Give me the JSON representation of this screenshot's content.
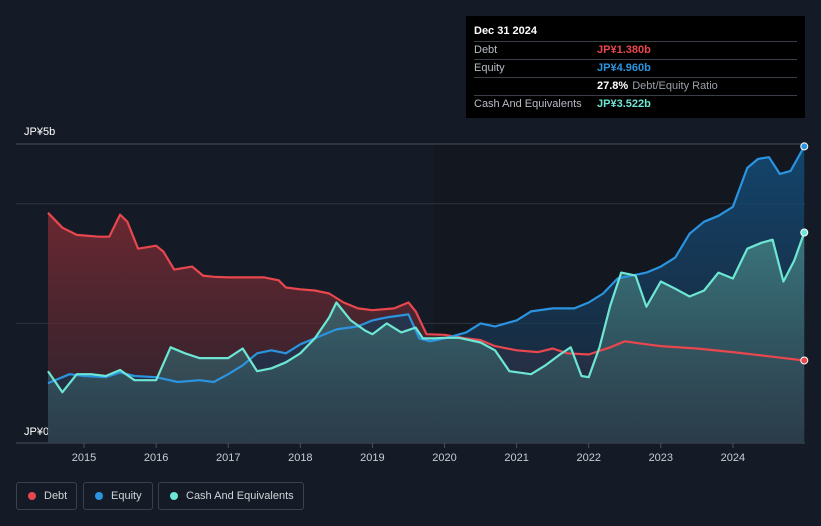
{
  "tooltip": {
    "date": "Dec 31 2024",
    "debt_label": "Debt",
    "debt_value": "JP¥1.380b",
    "equity_label": "Equity",
    "equity_value": "JP¥4.960b",
    "ratio_value": "27.8%",
    "ratio_label": "Debt/Equity Ratio",
    "cash_label": "Cash And Equivalents",
    "cash_value": "JP¥3.522b"
  },
  "legend": {
    "debt": "Debt",
    "equity": "Equity",
    "cash": "Cash And Equivalents"
  },
  "colors": {
    "debt": "#e8474e",
    "equity": "#2b94e0",
    "cash": "#6ee6d4",
    "background": "#151b26"
  },
  "chart_data": {
    "type": "area",
    "ylabel_top": "JP¥5b",
    "ylabel_bottom": "JP¥0",
    "ylim": [
      0,
      5
    ],
    "xlim": [
      2014.5,
      2025.0
    ],
    "x_ticks": [
      "2015",
      "2016",
      "2017",
      "2018",
      "2019",
      "2020",
      "2021",
      "2022",
      "2023",
      "2024"
    ],
    "grid": true,
    "legend_position": "bottom-left",
    "series": [
      {
        "name": "Debt",
        "key": "debt",
        "points": [
          [
            2014.5,
            3.85
          ],
          [
            2014.7,
            3.6
          ],
          [
            2014.9,
            3.48
          ],
          [
            2015.2,
            3.45
          ],
          [
            2015.35,
            3.45
          ],
          [
            2015.5,
            3.82
          ],
          [
            2015.6,
            3.7
          ],
          [
            2015.75,
            3.25
          ],
          [
            2016.0,
            3.3
          ],
          [
            2016.1,
            3.2
          ],
          [
            2016.25,
            2.9
          ],
          [
            2016.5,
            2.95
          ],
          [
            2016.65,
            2.8
          ],
          [
            2016.8,
            2.78
          ],
          [
            2017.0,
            2.77
          ],
          [
            2017.5,
            2.77
          ],
          [
            2017.7,
            2.72
          ],
          [
            2017.8,
            2.6
          ],
          [
            2018.0,
            2.57
          ],
          [
            2018.2,
            2.55
          ],
          [
            2018.4,
            2.5
          ],
          [
            2018.6,
            2.35
          ],
          [
            2018.8,
            2.25
          ],
          [
            2019.0,
            2.22
          ],
          [
            2019.3,
            2.25
          ],
          [
            2019.5,
            2.35
          ],
          [
            2019.6,
            2.2
          ],
          [
            2019.75,
            1.82
          ],
          [
            2020.0,
            1.81
          ],
          [
            2020.3,
            1.75
          ],
          [
            2020.5,
            1.72
          ],
          [
            2020.7,
            1.62
          ],
          [
            2021.0,
            1.55
          ],
          [
            2021.3,
            1.52
          ],
          [
            2021.5,
            1.58
          ],
          [
            2021.7,
            1.5
          ],
          [
            2022.0,
            1.48
          ],
          [
            2022.3,
            1.6
          ],
          [
            2022.5,
            1.7
          ],
          [
            2022.8,
            1.65
          ],
          [
            2023.0,
            1.62
          ],
          [
            2023.5,
            1.58
          ],
          [
            2024.0,
            1.52
          ],
          [
            2024.5,
            1.45
          ],
          [
            2024.99,
            1.38
          ]
        ]
      },
      {
        "name": "Equity",
        "key": "equity",
        "points": [
          [
            2014.5,
            1.0
          ],
          [
            2014.8,
            1.15
          ],
          [
            2015.0,
            1.12
          ],
          [
            2015.3,
            1.1
          ],
          [
            2015.5,
            1.18
          ],
          [
            2015.7,
            1.12
          ],
          [
            2016.0,
            1.1
          ],
          [
            2016.3,
            1.02
          ],
          [
            2016.6,
            1.05
          ],
          [
            2016.8,
            1.02
          ],
          [
            2017.0,
            1.15
          ],
          [
            2017.2,
            1.3
          ],
          [
            2017.4,
            1.5
          ],
          [
            2017.6,
            1.55
          ],
          [
            2017.8,
            1.5
          ],
          [
            2018.0,
            1.65
          ],
          [
            2018.3,
            1.8
          ],
          [
            2018.5,
            1.9
          ],
          [
            2018.8,
            1.95
          ],
          [
            2019.0,
            2.05
          ],
          [
            2019.2,
            2.1
          ],
          [
            2019.5,
            2.15
          ],
          [
            2019.65,
            1.75
          ],
          [
            2019.8,
            1.7
          ],
          [
            2020.0,
            1.75
          ],
          [
            2020.3,
            1.85
          ],
          [
            2020.5,
            2.0
          ],
          [
            2020.7,
            1.95
          ],
          [
            2021.0,
            2.05
          ],
          [
            2021.2,
            2.2
          ],
          [
            2021.5,
            2.25
          ],
          [
            2021.8,
            2.25
          ],
          [
            2022.0,
            2.35
          ],
          [
            2022.2,
            2.5
          ],
          [
            2022.4,
            2.75
          ],
          [
            2022.6,
            2.8
          ],
          [
            2022.8,
            2.85
          ],
          [
            2023.0,
            2.95
          ],
          [
            2023.2,
            3.1
          ],
          [
            2023.4,
            3.5
          ],
          [
            2023.6,
            3.7
          ],
          [
            2023.8,
            3.8
          ],
          [
            2024.0,
            3.95
          ],
          [
            2024.2,
            4.6
          ],
          [
            2024.35,
            4.75
          ],
          [
            2024.5,
            4.78
          ],
          [
            2024.65,
            4.5
          ],
          [
            2024.8,
            4.55
          ],
          [
            2024.99,
            4.96
          ]
        ]
      },
      {
        "name": "Cash And Equivalents",
        "key": "cash",
        "points": [
          [
            2014.5,
            1.2
          ],
          [
            2014.7,
            0.85
          ],
          [
            2014.9,
            1.15
          ],
          [
            2015.1,
            1.15
          ],
          [
            2015.3,
            1.12
          ],
          [
            2015.5,
            1.22
          ],
          [
            2015.7,
            1.05
          ],
          [
            2016.0,
            1.05
          ],
          [
            2016.2,
            1.6
          ],
          [
            2016.4,
            1.5
          ],
          [
            2016.6,
            1.42
          ],
          [
            2016.8,
            1.42
          ],
          [
            2017.0,
            1.42
          ],
          [
            2017.2,
            1.58
          ],
          [
            2017.4,
            1.2
          ],
          [
            2017.6,
            1.25
          ],
          [
            2017.8,
            1.35
          ],
          [
            2018.0,
            1.5
          ],
          [
            2018.2,
            1.75
          ],
          [
            2018.4,
            2.1
          ],
          [
            2018.5,
            2.35
          ],
          [
            2018.7,
            2.05
          ],
          [
            2018.9,
            1.88
          ],
          [
            2019.0,
            1.82
          ],
          [
            2019.2,
            2.0
          ],
          [
            2019.4,
            1.85
          ],
          [
            2019.6,
            1.93
          ],
          [
            2019.7,
            1.75
          ],
          [
            2019.85,
            1.75
          ],
          [
            2020.0,
            1.76
          ],
          [
            2020.2,
            1.76
          ],
          [
            2020.5,
            1.68
          ],
          [
            2020.7,
            1.55
          ],
          [
            2020.9,
            1.2
          ],
          [
            2021.2,
            1.15
          ],
          [
            2021.4,
            1.3
          ],
          [
            2021.6,
            1.48
          ],
          [
            2021.75,
            1.6
          ],
          [
            2021.9,
            1.12
          ],
          [
            2022.0,
            1.1
          ],
          [
            2022.15,
            1.6
          ],
          [
            2022.3,
            2.3
          ],
          [
            2022.45,
            2.85
          ],
          [
            2022.65,
            2.8
          ],
          [
            2022.8,
            2.28
          ],
          [
            2023.0,
            2.7
          ],
          [
            2023.2,
            2.58
          ],
          [
            2023.4,
            2.45
          ],
          [
            2023.6,
            2.55
          ],
          [
            2023.8,
            2.85
          ],
          [
            2024.0,
            2.75
          ],
          [
            2024.2,
            3.25
          ],
          [
            2024.4,
            3.35
          ],
          [
            2024.55,
            3.4
          ],
          [
            2024.7,
            2.7
          ],
          [
            2024.85,
            3.05
          ],
          [
            2024.99,
            3.52
          ]
        ]
      }
    ]
  }
}
